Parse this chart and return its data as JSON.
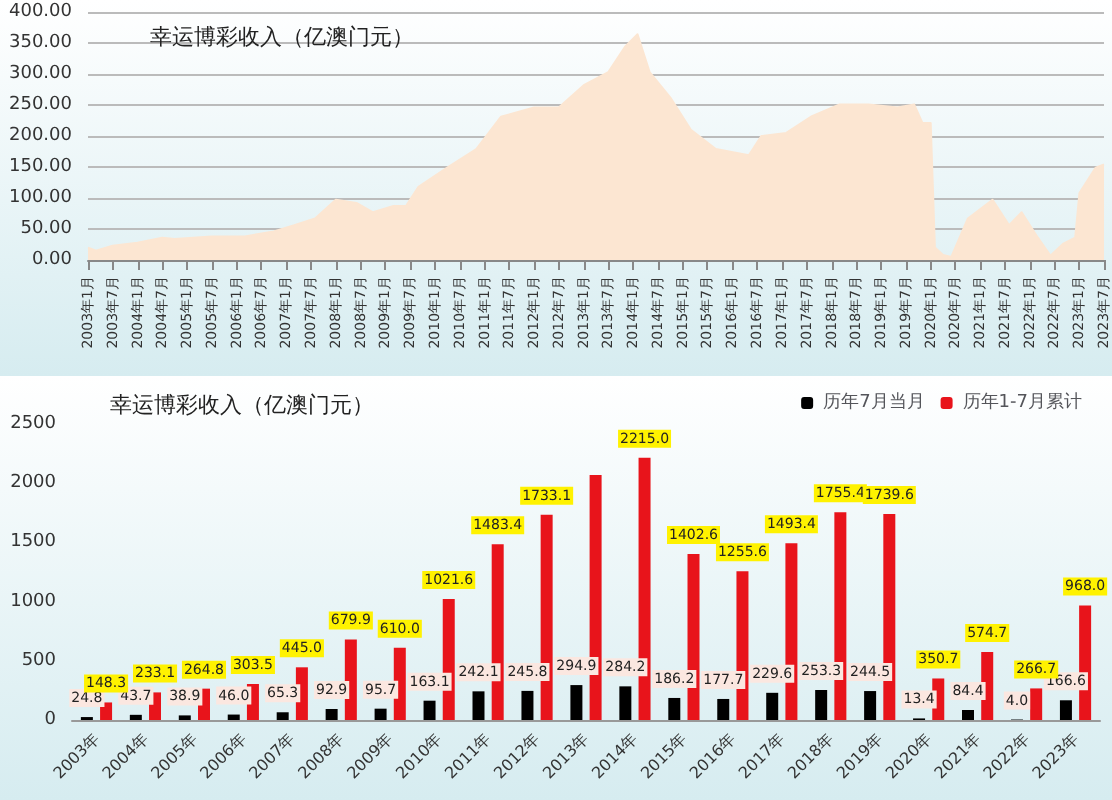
{
  "chart_data": [
    {
      "type": "area",
      "title": "幸运博彩收入（亿澳门元）",
      "x": [
        "2003-01",
        "2003-03",
        "2003-07",
        "2004-01",
        "2004-07",
        "2004-10",
        "2005-07",
        "2006-03",
        "2006-10",
        "2007-03",
        "2007-08",
        "2008-01",
        "2008-06",
        "2008-10",
        "2009-03",
        "2009-06",
        "2009-09",
        "2010-04",
        "2010-11",
        "2011-05",
        "2012-01",
        "2012-07",
        "2013-01",
        "2013-07",
        "2013-11",
        "2014-02",
        "2014-05",
        "2014-10",
        "2015-03",
        "2015-09",
        "2016-05",
        "2016-08",
        "2017-02",
        "2017-08",
        "2018-03",
        "2018-10",
        "2019-05",
        "2019-09",
        "2019-11",
        "2020-01",
        "2020-02",
        "2020-04",
        "2020-06",
        "2020-10",
        "2021-04",
        "2021-08",
        "2021-11",
        "2022-03",
        "2022-06",
        "2022-09",
        "2022-12",
        "2023-01",
        "2023-05",
        "2023-07"
      ],
      "series": [
        {
          "color": "#fce6d2",
          "values": [
            20,
            15,
            23,
            28,
            36,
            34,
            38,
            38,
            46,
            56,
            67,
            97,
            92,
            77,
            87,
            87,
            118,
            149,
            179,
            231,
            246,
            246,
            282,
            303,
            344,
            364,
            303,
            262,
            210,
            179,
            169,
            200,
            205,
            231,
            251,
            251,
            246,
            251,
            221,
            221,
            20,
            8,
            5,
            67,
            97,
            56,
            77,
            36,
            7,
            26,
            36,
            108,
            149,
            154
          ]
        }
      ],
      "xlim": [
        "2003-01",
        "2023-07"
      ],
      "xticks": [
        {
          "value": "2003-01",
          "label": "2003年1月"
        },
        {
          "value": "2003-07",
          "label": "2003年7月"
        },
        {
          "value": "2004-01",
          "label": "2004年1月"
        },
        {
          "value": "2004-07",
          "label": "2004年7月"
        },
        {
          "value": "2005-01",
          "label": "2005年1月"
        },
        {
          "value": "2005-07",
          "label": "2005年7月"
        },
        {
          "value": "2006-01",
          "label": "2006年1月"
        },
        {
          "value": "2006-07",
          "label": "2006年7月"
        },
        {
          "value": "2007-01",
          "label": "2007年1月"
        },
        {
          "value": "2007-07",
          "label": "2007年7月"
        },
        {
          "value": "2008-01",
          "label": "2008年1月"
        },
        {
          "value": "2008-07",
          "label": "2008年7月"
        },
        {
          "value": "2009-01",
          "label": "2009年1月"
        },
        {
          "value": "2009-07",
          "label": "2009年7月"
        },
        {
          "value": "2010-01",
          "label": "2010年1月"
        },
        {
          "value": "2010-07",
          "label": "2010年7月"
        },
        {
          "value": "2011-01",
          "label": "2011年1月"
        },
        {
          "value": "2011-07",
          "label": "2011年7月"
        },
        {
          "value": "2012-01",
          "label": "2012年1月"
        },
        {
          "value": "2012-07",
          "label": "2012年7月"
        },
        {
          "value": "2013-01",
          "label": "2013年1月"
        },
        {
          "value": "2013-07",
          "label": "2013年7月"
        },
        {
          "value": "2014-01",
          "label": "2014年1月"
        },
        {
          "value": "2014-07",
          "label": "2014年7月"
        },
        {
          "value": "2015-01",
          "label": "2015年1月"
        },
        {
          "value": "2015-07",
          "label": "2015年7月"
        },
        {
          "value": "2016-01",
          "label": "2016年1月"
        },
        {
          "value": "2016-07",
          "label": "2016年7月"
        },
        {
          "value": "2017-01",
          "label": "2017年1月"
        },
        {
          "value": "2017-07",
          "label": "2017年7月"
        },
        {
          "value": "2018-01",
          "label": "2018年1月"
        },
        {
          "value": "2018-07",
          "label": "2018年7月"
        },
        {
          "value": "2019-01",
          "label": "2019年1月"
        },
        {
          "value": "2019-07",
          "label": "2019年7月"
        },
        {
          "value": "2020-01",
          "label": "2020年1月"
        },
        {
          "value": "2020-07",
          "label": "2020年7月"
        },
        {
          "value": "2021-01",
          "label": "2021年1月"
        },
        {
          "value": "2021-07",
          "label": "2021年7月"
        },
        {
          "value": "2022-01",
          "label": "2022年1月"
        },
        {
          "value": "2022-07",
          "label": "2022年7月"
        },
        {
          "value": "2023-01",
          "label": "2023年1月"
        },
        {
          "value": "2023-07",
          "label": "2023年7月"
        }
      ],
      "ylim": [
        0,
        400
      ],
      "yticks": [
        {
          "value": 0,
          "label": "0.00"
        },
        {
          "value": 50,
          "label": "50.00"
        },
        {
          "value": 100,
          "label": "100.00"
        },
        {
          "value": 150,
          "label": "150.00"
        },
        {
          "value": 200,
          "label": "200.00"
        },
        {
          "value": 250,
          "label": "250.00"
        },
        {
          "value": 300,
          "label": "300.00"
        },
        {
          "value": 350,
          "label": "350.00"
        },
        {
          "value": 400,
          "label": "400.00"
        }
      ],
      "grid": "y",
      "legend": false
    },
    {
      "type": "bar",
      "title": "幸运博彩收入（亿澳门元）",
      "categories": [
        "2003年",
        "2004年",
        "2005年",
        "2006年",
        "2007年",
        "2008年",
        "2009年",
        "2010年",
        "2011年",
        "2012年",
        "2013年",
        "2014年",
        "2015年",
        "2016年",
        "2017年",
        "2018年",
        "2019年",
        "2020年",
        "2021年",
        "2022年",
        "2023年"
      ],
      "series": [
        {
          "name": "历年7月当月",
          "color": "#000000",
          "values": [
            24.8,
            43.7,
            38.9,
            46.0,
            65.3,
            92.9,
            95.7,
            163.1,
            242.1,
            245.8,
            294.9,
            284.2,
            186.2,
            177.7,
            229.6,
            253.3,
            244.5,
            13.4,
            84.4,
            4.0,
            166.6
          ],
          "value_labels": [
            "24.8",
            "43.7",
            "38.9",
            "46.0",
            "65.3",
            "92.9",
            "95.7",
            "163.1",
            "242.1",
            "245.8",
            "294.9",
            "284.2",
            "186.2",
            "177.7",
            "229.6",
            "253.3",
            "244.5",
            "13.4",
            "84.4",
            "4.0",
            "166.6"
          ]
        },
        {
          "name": "历年1-7月累计",
          "color": "#e8141b",
          "values": [
            148.3,
            233.1,
            264.8,
            303.5,
            445.0,
            679.9,
            610.0,
            1021.6,
            1483.4,
            1733.1,
            2070,
            2215.0,
            1402.6,
            1255.6,
            1493.4,
            1755.4,
            1739.6,
            350.7,
            574.7,
            266.7,
            968.0
          ],
          "value_labels": [
            "148.3",
            "233.1",
            "264.8",
            "303.5",
            "445.0",
            "679.9",
            "610.0",
            "1021.6",
            "1483.4",
            "1733.1",
            null,
            "2215.0",
            "1402.6",
            "1255.6",
            "1493.4",
            "1755.4",
            "1739.6",
            "350.7",
            "574.7",
            "266.7",
            "968.0"
          ]
        }
      ],
      "ylim": [
        0,
        2500
      ],
      "yticks": [
        0,
        500,
        1000,
        1500,
        2000,
        2500
      ],
      "grid": false,
      "legend": "top right"
    }
  ]
}
